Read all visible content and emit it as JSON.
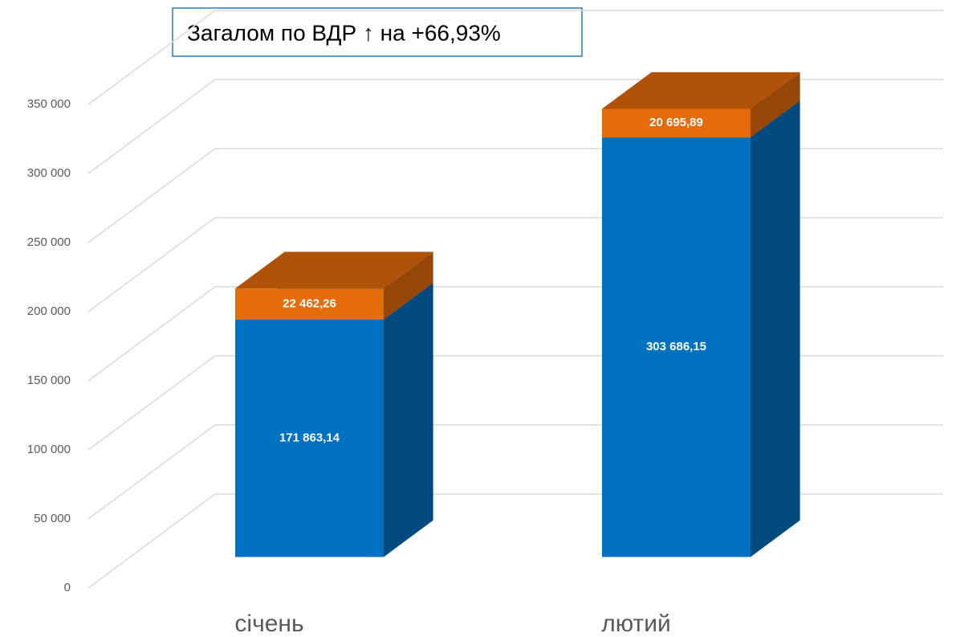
{
  "chart_data": {
    "type": "bar3d_stacked",
    "annotation": "Загалом по ВДР ↑ на +66,93%",
    "categories": [
      "січень",
      "лютий"
    ],
    "series": [
      {
        "name": null,
        "color": "#0070c0",
        "values": [
          171863.14,
          303686.15
        ],
        "value_labels": [
          "171 863,14",
          "303 686,15"
        ]
      },
      {
        "name": null,
        "color": "#e46c0a",
        "values": [
          22462.26,
          20695.89
        ],
        "value_labels": [
          "22 462,26",
          "20 695,89"
        ]
      }
    ],
    "ylim": [
      0,
      350000
    ],
    "yticks": [
      0,
      {
        "value": 50000,
        "label": "50 000"
      },
      {
        "value": 100000,
        "label": "100 000"
      },
      {
        "value": 150000,
        "label": "150 000"
      },
      {
        "value": 200000,
        "label": "200 000"
      },
      {
        "value": 250000,
        "label": "250 000"
      },
      {
        "value": 300000,
        "label": "300 000"
      },
      {
        "value": 350000,
        "label": "350 000"
      }
    ],
    "grid": true
  }
}
